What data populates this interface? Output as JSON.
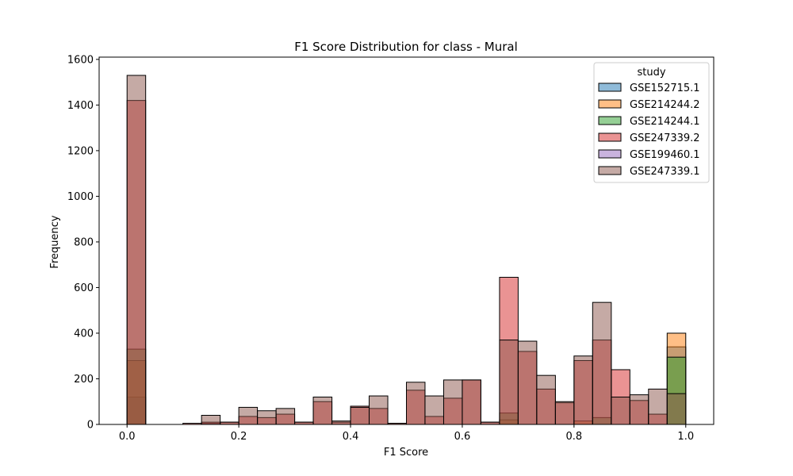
{
  "chart_data": {
    "type": "histogram",
    "title": "F1 Score Distribution for class - Mural",
    "xlabel": "F1 Score",
    "ylabel": "Frequency",
    "xlim": [
      -0.05,
      1.05
    ],
    "ylim": [
      0,
      1610
    ],
    "xticks": [
      "0.0",
      "0.2",
      "0.4",
      "0.6",
      "0.8",
      "1.0"
    ],
    "yticks": [
      "0",
      "200",
      "400",
      "600",
      "800",
      "1000",
      "1200",
      "1400",
      "1600"
    ],
    "grid": false,
    "legend": {
      "title": "study",
      "position": "top-right"
    },
    "bin_edges": [
      0,
      0.0333,
      0.0667,
      0.1,
      0.1333,
      0.1667,
      0.2,
      0.2333,
      0.2667,
      0.3,
      0.3333,
      0.3667,
      0.4,
      0.4333,
      0.4667,
      0.5,
      0.5333,
      0.5667,
      0.6,
      0.6333,
      0.6667,
      0.7,
      0.7333,
      0.7667,
      0.8,
      0.8333,
      0.8667,
      0.9,
      0.9333,
      0.9667,
      1.0
    ],
    "series": [
      {
        "name": "GSE152715.1",
        "color": "#1f77b4",
        "values": [
          120,
          0,
          0,
          0,
          5,
          0,
          0,
          0,
          0,
          0,
          0,
          0,
          0,
          0,
          0,
          0,
          0,
          0,
          0,
          0,
          0,
          0,
          0,
          0,
          0,
          0,
          0,
          0,
          0,
          340
        ]
      },
      {
        "name": "GSE214244.2",
        "color": "#ff7f0e",
        "values": [
          280,
          0,
          0,
          0,
          0,
          0,
          0,
          0,
          0,
          0,
          0,
          0,
          0,
          0,
          0,
          0,
          0,
          0,
          0,
          0,
          20,
          0,
          0,
          0,
          15,
          0,
          0,
          0,
          0,
          400
        ]
      },
      {
        "name": "GSE214244.1",
        "color": "#2ca02c",
        "values": [
          330,
          0,
          0,
          0,
          0,
          0,
          0,
          0,
          0,
          0,
          0,
          0,
          0,
          0,
          0,
          0,
          0,
          0,
          0,
          0,
          50,
          0,
          0,
          0,
          0,
          30,
          0,
          0,
          0,
          295
        ]
      },
      {
        "name": "GSE247339.2",
        "color": "#d62728",
        "values": [
          1420,
          0,
          0,
          5,
          10,
          10,
          35,
          30,
          45,
          10,
          100,
          10,
          80,
          70,
          5,
          150,
          35,
          115,
          195,
          10,
          645,
          320,
          155,
          95,
          280,
          370,
          240,
          105,
          45,
          0
        ]
      },
      {
        "name": "GSE199460.1",
        "color": "#9467bd",
        "values": [
          0,
          0,
          0,
          0,
          0,
          0,
          0,
          0,
          0,
          0,
          0,
          0,
          0,
          0,
          0,
          0,
          0,
          0,
          0,
          0,
          0,
          0,
          0,
          0,
          0,
          0,
          0,
          0,
          0,
          0
        ]
      },
      {
        "name": "GSE247339.1",
        "color": "#8c564b",
        "values": [
          1530,
          0,
          0,
          0,
          40,
          10,
          75,
          60,
          70,
          10,
          120,
          15,
          75,
          125,
          5,
          185,
          125,
          195,
          195,
          10,
          370,
          365,
          215,
          100,
          300,
          535,
          120,
          130,
          155,
          135
        ]
      }
    ]
  }
}
